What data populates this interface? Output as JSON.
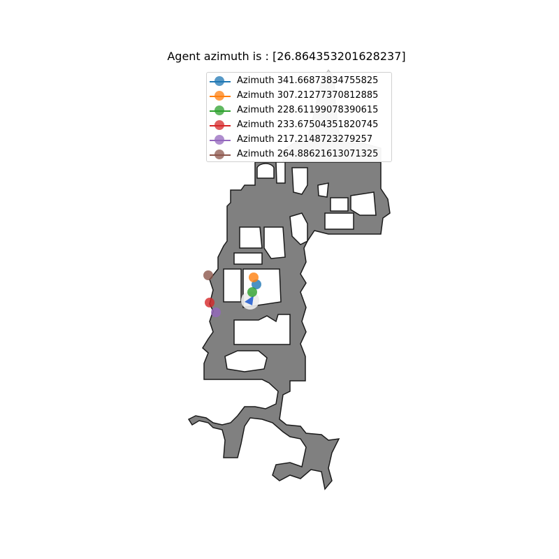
{
  "title": "Agent azimuth is : [26.864353201628237]",
  "legend": [
    {
      "label": "Azimuth 341.66873834755825",
      "color": "#1f77b4"
    },
    {
      "label": "Azimuth 307.21277370812885",
      "color": "#ff7f0e"
    },
    {
      "label": "Azimuth 228.61199078390615",
      "color": "#2ca02c"
    },
    {
      "label": "Azimuth 233.67504351820745",
      "color": "#d62728"
    },
    {
      "label": "Azimuth 217.2148723279257",
      "color": "#9467bd"
    },
    {
      "label": "Azimuth 264.88621613071325",
      "color": "#8c564b"
    }
  ],
  "colors": {
    "floor": "#808080",
    "wall": "#1a1a1a",
    "agent": "#3b6fd4"
  }
}
